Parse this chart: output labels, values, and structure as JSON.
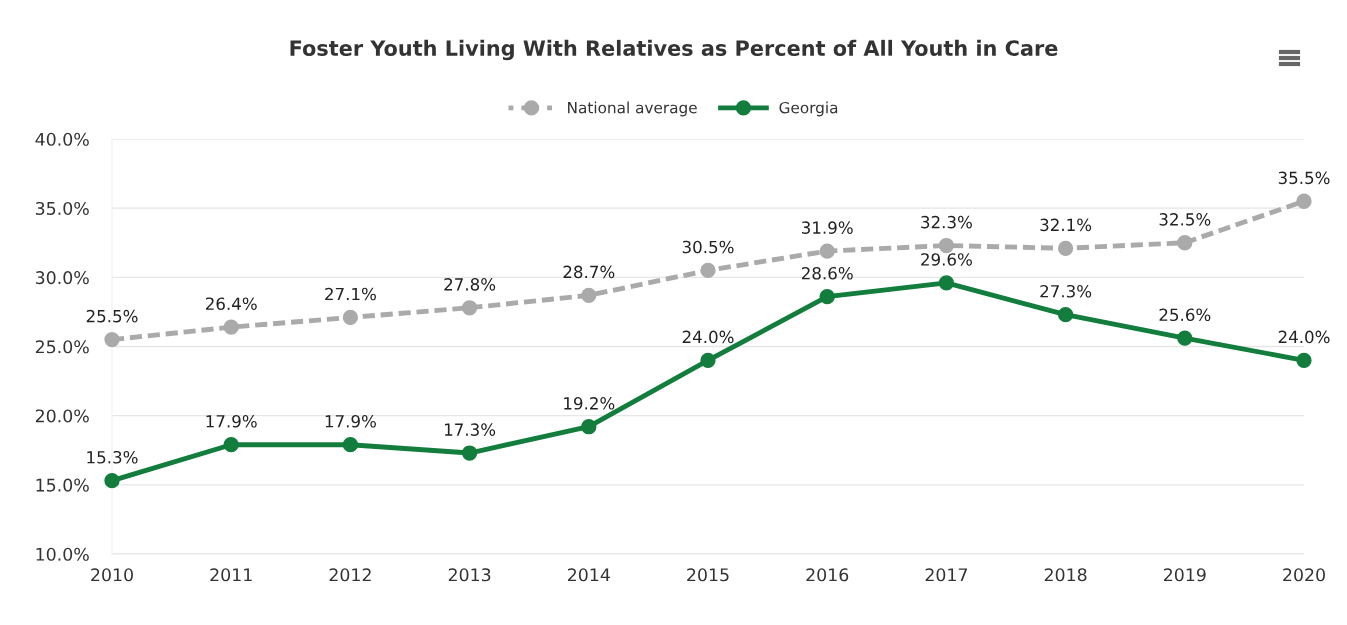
{
  "chart_data": {
    "type": "line",
    "title": "Foster Youth Living With Relatives as Percent of All Youth in Care",
    "categories": [
      "2010",
      "2011",
      "2012",
      "2013",
      "2014",
      "2015",
      "2016",
      "2017",
      "2018",
      "2019",
      "2020"
    ],
    "series": [
      {
        "name": "National average",
        "color": "#aaaaaa",
        "line_style": "dotted",
        "values": [
          25.5,
          26.4,
          27.1,
          27.8,
          28.7,
          30.5,
          31.9,
          32.3,
          32.1,
          32.5,
          35.5
        ],
        "value_labels": [
          "25.5%",
          "26.4%",
          "27.1%",
          "27.8%",
          "28.7%",
          "30.5%",
          "31.9%",
          "32.3%",
          "32.1%",
          "32.5%",
          "35.5%"
        ]
      },
      {
        "name": "Georgia",
        "color": "#127d3c",
        "line_style": "solid",
        "values": [
          15.3,
          17.9,
          17.9,
          17.3,
          19.2,
          24.0,
          28.6,
          29.6,
          27.3,
          25.6,
          24.0
        ],
        "value_labels": [
          "15.3%",
          "17.9%",
          "17.9%",
          "17.3%",
          "19.2%",
          "24.0%",
          "28.6%",
          "29.6%",
          "27.3%",
          "25.6%",
          "24.0%"
        ]
      }
    ],
    "ylim": [
      10,
      40
    ],
    "yticks": [
      {
        "value": 10,
        "label": "10.0%"
      },
      {
        "value": 15,
        "label": "15.0%"
      },
      {
        "value": 20,
        "label": "20.0%"
      },
      {
        "value": 25,
        "label": "25.0%"
      },
      {
        "value": 30,
        "label": "30.0%"
      },
      {
        "value": 35,
        "label": "35.0%"
      },
      {
        "value": 40,
        "label": "40.0%"
      }
    ],
    "grid": "y",
    "legend": "top",
    "marker": "circle"
  }
}
